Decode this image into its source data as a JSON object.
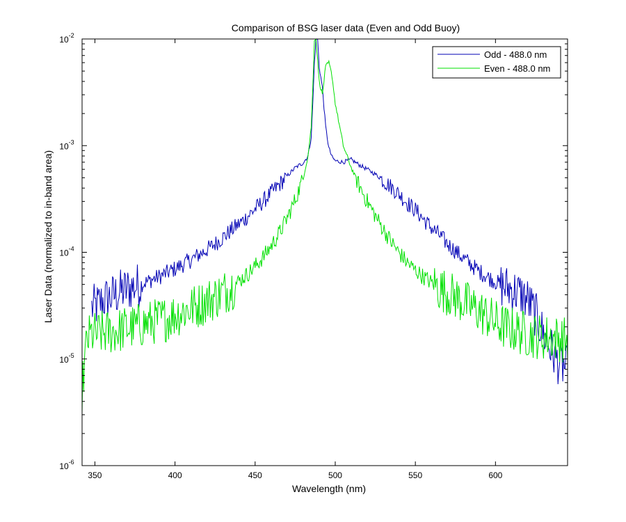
{
  "chart_data": {
    "type": "line",
    "title": "Comparison of BSG laser data (Even and Odd Buoy)",
    "xlabel": "Wavelength (nm)",
    "ylabel": "Laser Data (normalized to in-band area)",
    "xlim": [
      342,
      645
    ],
    "ylim": [
      1e-06,
      0.01
    ],
    "yscale": "log",
    "grid": false,
    "legend_location": "top-right",
    "x_ticks": [
      350,
      400,
      450,
      500,
      550,
      600
    ],
    "x_tick_labels": [
      "350",
      "400",
      "450",
      "500",
      "550",
      "600"
    ],
    "y_ticks": [
      {
        "value": 1e-06,
        "base": "10",
        "exp": "-6"
      },
      {
        "value": 1e-05,
        "base": "10",
        "exp": "-5"
      },
      {
        "value": 0.0001,
        "base": "10",
        "exp": "-4"
      },
      {
        "value": 0.001,
        "base": "10",
        "exp": "-3"
      },
      {
        "value": 0.01,
        "base": "10",
        "exp": "-2"
      }
    ],
    "series": [
      {
        "name": "Odd - 488.0 nm",
        "color": "#0000b4",
        "x": [
          348,
          352,
          356,
          360,
          365,
          370,
          375,
          380,
          385,
          390,
          395,
          400,
          405,
          410,
          415,
          420,
          425,
          430,
          435,
          440,
          445,
          450,
          455,
          460,
          465,
          470,
          475,
          480,
          483,
          485,
          486,
          487,
          488,
          489,
          490,
          492,
          494,
          496,
          498,
          500,
          505,
          510,
          515,
          520,
          525,
          530,
          535,
          540,
          545,
          550,
          555,
          560,
          565,
          570,
          575,
          580,
          585,
          590,
          595,
          600,
          605,
          610,
          615,
          620,
          625,
          630,
          635,
          640,
          645
        ],
        "y": [
          3e-05,
          3.2e-05,
          3.6e-05,
          3.8e-05,
          4.2e-05,
          4.5e-05,
          4.8e-05,
          5.1e-05,
          5.5e-05,
          5.9e-05,
          6.4e-05,
          7e-05,
          7.7e-05,
          8.5e-05,
          9.5e-05,
          0.000106,
          0.00012,
          0.000138,
          0.00016,
          0.000185,
          0.000215,
          0.000255,
          0.0003,
          0.00036,
          0.00043,
          0.00052,
          0.00062,
          0.00069,
          0.0008,
          0.0012,
          0.0025,
          0.006,
          0.01,
          0.01,
          0.0055,
          0.0035,
          0.0015,
          0.00095,
          0.00078,
          0.00072,
          0.0007,
          0.00074,
          0.00066,
          0.0006,
          0.00054,
          0.00047,
          0.00041,
          0.00035,
          0.00029,
          0.00025,
          0.000205,
          0.00017,
          0.000145,
          0.00012,
          0.000103,
          8.8e-05,
          7.6e-05,
          6.6e-05,
          5.9e-05,
          5.3e-05,
          4.8e-05,
          4.5e-05,
          4.1e-05,
          3.6e-05,
          2.6e-05,
          1.7e-05,
          1.2e-05,
          9e-06,
          8e-06
        ]
      },
      {
        "name": "Even - 488.0 nm",
        "color": "#00e000",
        "x": [
          342,
          345,
          348,
          352,
          356,
          360,
          365,
          370,
          375,
          380,
          385,
          390,
          395,
          400,
          405,
          410,
          415,
          420,
          425,
          430,
          435,
          440,
          445,
          450,
          455,
          460,
          465,
          470,
          475,
          480,
          483,
          485,
          486,
          487,
          488,
          490,
          492,
          494,
          496,
          498,
          500,
          505,
          510,
          515,
          520,
          525,
          530,
          535,
          540,
          545,
          550,
          555,
          560,
          565,
          570,
          575,
          580,
          585,
          590,
          595,
          600,
          605,
          610,
          615,
          620,
          625,
          630,
          635,
          640,
          645
        ],
        "y": [
          5e-06,
          1.5e-05,
          1.7e-05,
          1.7e-05,
          1.75e-05,
          1.8e-05,
          1.85e-05,
          1.95e-05,
          2e-05,
          2.1e-05,
          2.2e-05,
          2.3e-05,
          2.4e-05,
          2.6e-05,
          2.8e-05,
          3e-05,
          3.2e-05,
          3.5e-05,
          3.8e-05,
          4.2e-05,
          4.7e-05,
          5.4e-05,
          6.2e-05,
          7.4e-05,
          9e-05,
          0.000115,
          0.00015,
          0.00021,
          0.00031,
          0.0005,
          0.0008,
          0.0015,
          0.0035,
          0.01,
          0.01,
          0.004,
          0.003,
          0.0055,
          0.006,
          0.0045,
          0.0025,
          0.001,
          0.00062,
          0.00042,
          0.0003,
          0.00022,
          0.000165,
          0.000125,
          9.8e-05,
          8e-05,
          6.8e-05,
          5.9e-05,
          5.2e-05,
          4.6e-05,
          4.2e-05,
          3.8e-05,
          3.4e-05,
          3.1e-05,
          2.8e-05,
          2.5e-05,
          2.2e-05,
          2e-05,
          1.9e-05,
          1.8e-05,
          1.7e-05,
          1.65e-05,
          1.6e-05,
          1.6e-05,
          1.55e-05,
          1.5e-05
        ]
      }
    ]
  }
}
